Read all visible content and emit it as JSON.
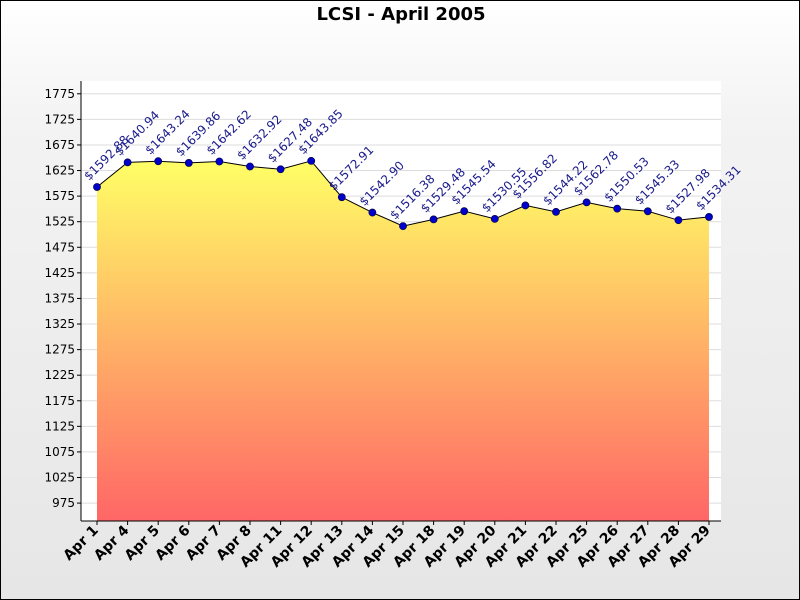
{
  "chart_data": {
    "type": "area",
    "title": "LCSI - April 2005",
    "xlabel": "",
    "ylabel": "",
    "categories": [
      "Apr 1",
      "Apr 4",
      "Apr 5",
      "Apr 6",
      "Apr 7",
      "Apr 8",
      "Apr 11",
      "Apr 12",
      "Apr 13",
      "Apr 14",
      "Apr 15",
      "Apr 18",
      "Apr 19",
      "Apr 20",
      "Apr 21",
      "Apr 22",
      "Apr 25",
      "Apr 26",
      "Apr 27",
      "Apr 28",
      "Apr 29"
    ],
    "values": [
      1592.88,
      1640.94,
      1643.24,
      1639.86,
      1642.62,
      1632.92,
      1627.48,
      1643.85,
      1572.91,
      1542.9,
      1516.38,
      1529.48,
      1545.54,
      1530.55,
      1556.82,
      1544.22,
      1562.78,
      1550.53,
      1545.33,
      1527.98,
      1534.31
    ],
    "data_labels": [
      "$1592.88",
      "$1640.94",
      "$1643.24",
      "$1639.86",
      "$1642.62",
      "$1632.92",
      "$1627.48",
      "$1643.85",
      "$1572.91",
      "$1542.90",
      "$1516.38",
      "$1529.48",
      "$1545.54",
      "$1530.55",
      "$1556.82",
      "$1544.22",
      "$1562.78",
      "$1550.53",
      "$1545.33",
      "$1527.98",
      "$1534.31"
    ],
    "yticks": [
      "975",
      "1025",
      "1075",
      "1125",
      "1175",
      "1225",
      "1275",
      "1325",
      "1375",
      "1425",
      "1475",
      "1525",
      "1575",
      "1625",
      "1675",
      "1725",
      "1775"
    ],
    "ylim": [
      940,
      1800
    ],
    "grid": true,
    "legend": "none",
    "colors": {
      "fill_top": "#ffff66",
      "fill_bottom": "#ff6666",
      "line": "#000000",
      "marker": "#0000cc",
      "label": "#1a1a8c",
      "plot_bg": "#ffffff",
      "grid": "#dddddd"
    }
  }
}
